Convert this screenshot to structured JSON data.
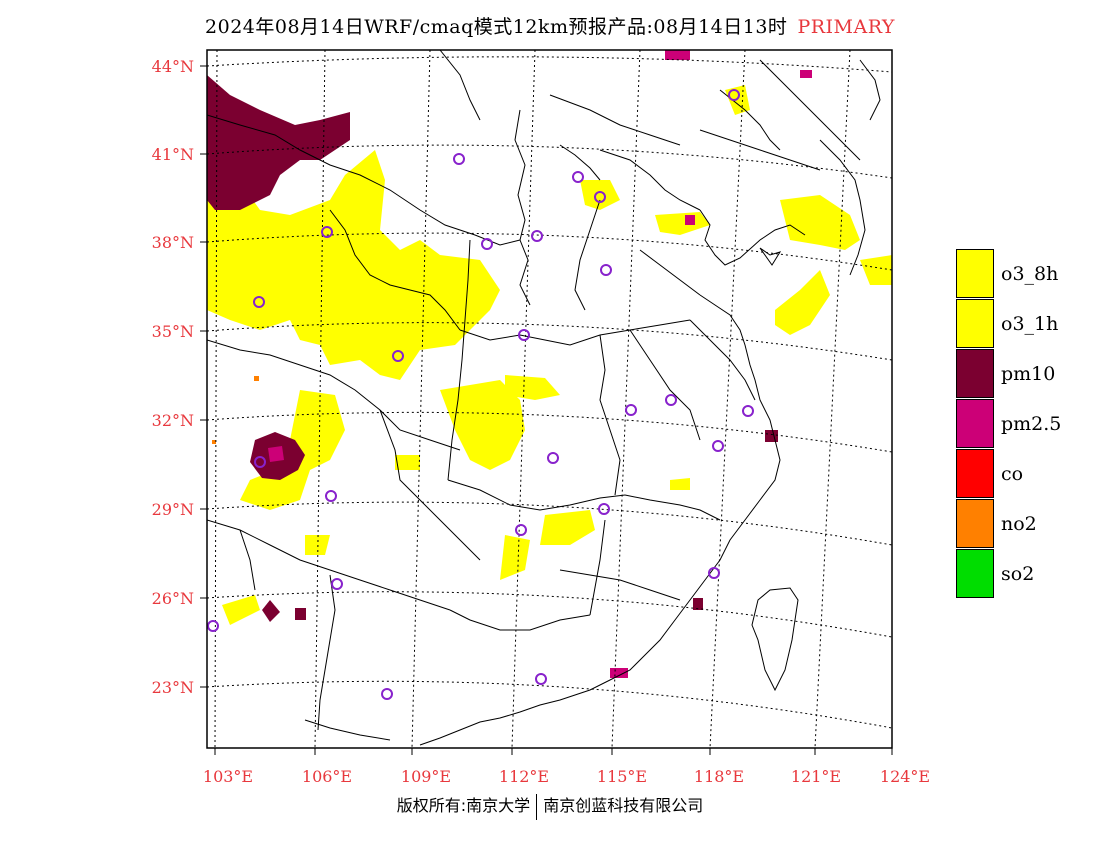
{
  "title": {
    "main": "2024年08月14日WRF/cmaq模式12km预报产品:08月14日13时",
    "tag": "PRIMARY"
  },
  "axes": {
    "lat_labels": [
      "44°N",
      "41°N",
      "38°N",
      "35°N",
      "32°N",
      "29°N",
      "26°N",
      "23°N"
    ],
    "lon_labels": [
      "103°E",
      "106°E",
      "109°E",
      "112°E",
      "115°E",
      "118°E",
      "121°E",
      "124°E"
    ],
    "label_color": "#e8383d"
  },
  "legend": {
    "items": [
      {
        "label": "o3_8h",
        "color": "#ffff00"
      },
      {
        "label": "o3_1h",
        "color": "#ffff00"
      },
      {
        "label": "pm10",
        "color": "#7b0030"
      },
      {
        "label": "pm2.5",
        "color": "#cc0077"
      },
      {
        "label": "co",
        "color": "#ff0000"
      },
      {
        "label": "no2",
        "color": "#ff8000"
      },
      {
        "label": "so2",
        "color": "#00dd00"
      }
    ]
  },
  "copyright": {
    "left": "版权所有:南京大学",
    "right": "南京创蓝科技有限公司"
  },
  "colors": {
    "o3": "#ffff00",
    "pm10": "#7b0030",
    "pm25": "#cc0077",
    "no2": "#ff8000",
    "station": "#8822cc",
    "frame": "#000000"
  }
}
